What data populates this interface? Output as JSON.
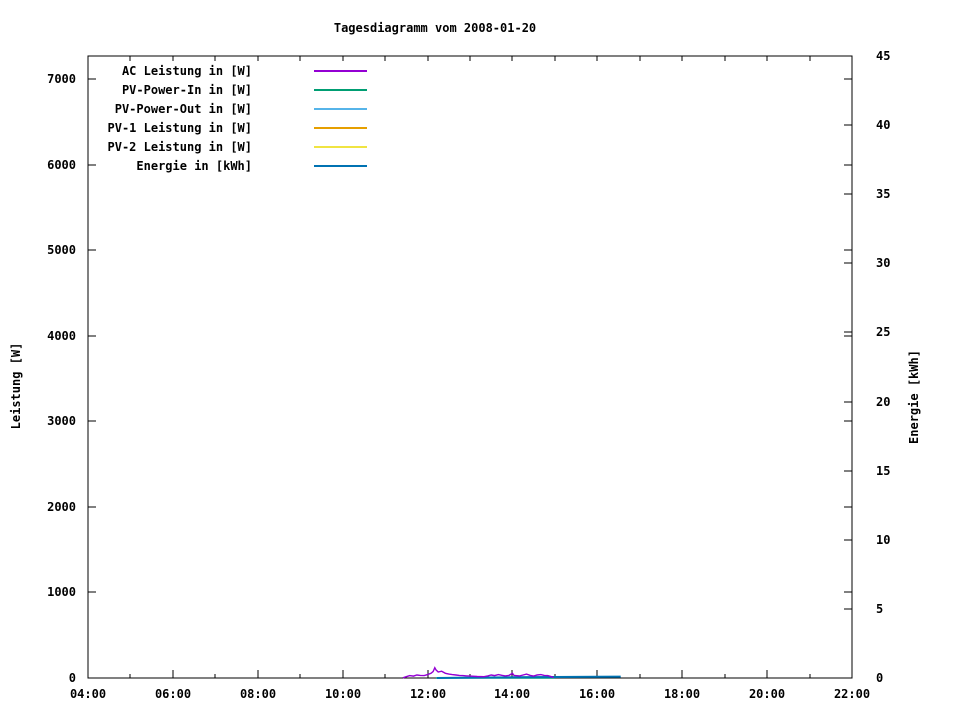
{
  "chart_data": {
    "type": "line",
    "title": "Tagesdiagramm vom 2008-01-20",
    "grid": false,
    "legend_position": "top-left-inside",
    "x_axis": {
      "unit": "time-of-day",
      "range_hours": [
        4,
        22
      ],
      "major_tick_labels": [
        "04:00",
        "06:00",
        "08:00",
        "10:00",
        "12:00",
        "14:00",
        "16:00",
        "18:00",
        "20:00",
        "22:00"
      ],
      "major_tick_hours": [
        4,
        6,
        8,
        10,
        12,
        14,
        16,
        18,
        20,
        22
      ],
      "minor_tick_hours": [
        5,
        7,
        9,
        11,
        13,
        15,
        17,
        19,
        21
      ],
      "mirrored_top_ticks_every_hours": 1
    },
    "y_left": {
      "label": "Leistung [W]",
      "ticks": [
        0,
        1000,
        2000,
        3000,
        4000,
        5000,
        6000,
        7000
      ],
      "range": [
        0,
        7270
      ]
    },
    "y_right": {
      "label": "Energie [kWh]",
      "ticks": [
        0,
        5,
        10,
        15,
        20,
        25,
        30,
        35,
        40,
        45
      ],
      "range": [
        0,
        45
      ]
    },
    "legend": [
      {
        "label": "AC Leistung in [W]",
        "color": "#9400D3"
      },
      {
        "label": "PV-Power-In in [W]",
        "color": "#009E73"
      },
      {
        "label": "PV-Power-Out in [W]",
        "color": "#56B4E9"
      },
      {
        "label": "PV-1 Leistung in [W]",
        "color": "#E69F00"
      },
      {
        "label": "PV-2 Leistung in [W]",
        "color": "#F0E442"
      },
      {
        "label": "Energie in [kWh]",
        "color": "#0072B2"
      }
    ],
    "draw_order": [
      1,
      2,
      3,
      4,
      5,
      0
    ],
    "series": [
      {
        "name": "AC Leistung in [W]",
        "color": "#9400D3",
        "axis": "left",
        "width": 1.4,
        "points": [
          [
            11.42,
            2
          ],
          [
            11.5,
            15
          ],
          [
            11.58,
            28
          ],
          [
            11.67,
            22
          ],
          [
            11.75,
            35
          ],
          [
            11.83,
            30
          ],
          [
            11.92,
            28
          ],
          [
            12.0,
            40
          ],
          [
            12.08,
            55
          ],
          [
            12.13,
            75
          ],
          [
            12.17,
            120
          ],
          [
            12.2,
            95
          ],
          [
            12.25,
            70
          ],
          [
            12.33,
            80
          ],
          [
            12.42,
            55
          ],
          [
            12.5,
            45
          ],
          [
            12.58,
            40
          ],
          [
            12.67,
            35
          ],
          [
            12.75,
            30
          ],
          [
            12.83,
            28
          ],
          [
            12.92,
            25
          ],
          [
            13.0,
            22
          ],
          [
            13.17,
            18
          ],
          [
            13.33,
            15
          ],
          [
            13.42,
            25
          ],
          [
            13.5,
            35
          ],
          [
            13.58,
            28
          ],
          [
            13.67,
            40
          ],
          [
            13.75,
            32
          ],
          [
            13.83,
            25
          ],
          [
            13.92,
            30
          ],
          [
            14.0,
            55
          ],
          [
            14.04,
            30
          ],
          [
            14.17,
            25
          ],
          [
            14.25,
            35
          ],
          [
            14.33,
            45
          ],
          [
            14.42,
            30
          ],
          [
            14.5,
            22
          ],
          [
            14.58,
            35
          ],
          [
            14.67,
            40
          ],
          [
            14.75,
            30
          ],
          [
            14.83,
            28
          ],
          [
            14.92,
            15
          ],
          [
            14.97,
            4
          ]
        ]
      },
      {
        "name": "PV-Power-In in [W]",
        "color": "#009E73",
        "axis": "left",
        "width": 1.4,
        "points": [
          [
            12.2,
            0
          ],
          [
            15.0,
            0
          ]
        ]
      },
      {
        "name": "PV-Power-Out in [W]",
        "color": "#56B4E9",
        "axis": "left",
        "width": 1.4,
        "points": []
      },
      {
        "name": "PV-1 Leistung in [W]",
        "color": "#E69F00",
        "axis": "left",
        "width": 1.4,
        "points": []
      },
      {
        "name": "PV-2 Leistung in [W]",
        "color": "#F0E442",
        "axis": "left",
        "width": 1.4,
        "points": []
      },
      {
        "name": "Energie in [kWh]",
        "color": "#0072B2",
        "axis": "right",
        "width": 2,
        "points": [
          [
            12.22,
            0
          ],
          [
            13.0,
            0.03
          ],
          [
            14.0,
            0.05
          ],
          [
            15.0,
            0.07
          ],
          [
            16.0,
            0.09
          ],
          [
            16.55,
            0.1
          ]
        ]
      }
    ]
  }
}
